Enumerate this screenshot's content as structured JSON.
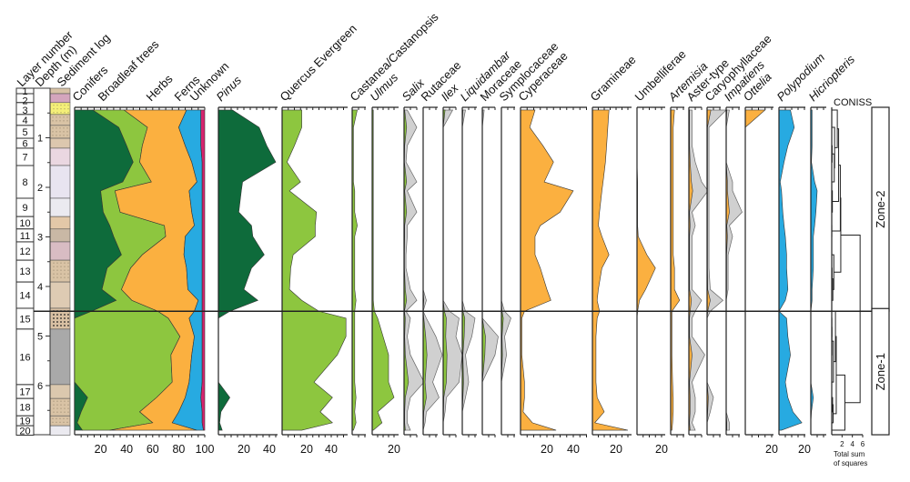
{
  "chart_data": {
    "type": "area",
    "depth_label": "Depth (m)",
    "layer_label": "Layer number",
    "sediment_label": "Sediment log",
    "coniss_label": "CONISS",
    "coniss_axis_ticks": [
      "2",
      "4",
      "6"
    ],
    "coniss_axis_label_1": "Total sum",
    "coniss_axis_label_2": "of squares",
    "depth_ticks": [
      1,
      2,
      3,
      4,
      5,
      6
    ],
    "depths": [
      0.44,
      0.79,
      1.16,
      1.49,
      1.89,
      2.07,
      2.5,
      2.77,
      2.99,
      3.36,
      3.63,
      4.06,
      4.28,
      4.5,
      4.64,
      5.01,
      5.38,
      5.93,
      6.24,
      6.53,
      6.75,
      6.9
    ],
    "layers": [
      {
        "n": "1",
        "top": 0.0,
        "bottom": 0.11,
        "color": "#d8c2a6"
      },
      {
        "n": "2",
        "top": 0.11,
        "bottom": 0.29,
        "color": "#d4a5bd"
      },
      {
        "n": "3",
        "top": 0.29,
        "bottom": 0.53,
        "color": "#f4ef78"
      },
      {
        "n": "4",
        "top": 0.53,
        "bottom": 0.75,
        "color": "#d9c3a5"
      },
      {
        "n": "5",
        "top": 0.75,
        "bottom": 1.01,
        "color": "#d9c3a5"
      },
      {
        "n": "6",
        "top": 1.01,
        "bottom": 1.21,
        "color": "#dcc7ae"
      },
      {
        "n": "7",
        "top": 1.21,
        "bottom": 1.56,
        "color": "#ead7e1"
      },
      {
        "n": "8",
        "top": 1.56,
        "bottom": 2.22,
        "color": "#e8e4f0"
      },
      {
        "n": "9",
        "top": 2.22,
        "bottom": 2.59,
        "color": "#ebeaf0"
      },
      {
        "n": "10",
        "top": 2.59,
        "bottom": 2.84,
        "color": "#e3c8a8"
      },
      {
        "n": "11",
        "top": 2.84,
        "bottom": 3.1,
        "color": "#c9b8a5"
      },
      {
        "n": "12",
        "top": 3.1,
        "bottom": 3.47,
        "color": "#d8bcc3"
      },
      {
        "n": "13",
        "top": 3.47,
        "bottom": 3.91,
        "color": "#d9c3a5"
      },
      {
        "n": "14",
        "top": 3.91,
        "bottom": 4.44,
        "color": "#decbb3"
      },
      {
        "n": "15",
        "top": 4.44,
        "bottom": 4.86,
        "color": "#d8c0a3"
      },
      {
        "n": "16",
        "top": 4.86,
        "bottom": 5.98,
        "color": "#a9a9a9"
      },
      {
        "n": "17",
        "top": 5.98,
        "bottom": 6.26,
        "color": "#dbc8ae"
      },
      {
        "n": "18",
        "top": 6.26,
        "bottom": 6.61,
        "color": "#d9c3a5"
      },
      {
        "n": "19",
        "top": 6.61,
        "bottom": 6.81,
        "color": "#d9c3a5"
      },
      {
        "n": "20",
        "top": 6.81,
        "bottom": 7.0,
        "color": "#ebeaf0"
      }
    ],
    "summary": {
      "ticks": [
        20,
        40,
        60,
        80,
        100
      ],
      "xlim": [
        0,
        100
      ],
      "series": [
        {
          "name": "Conifers",
          "color": "#0e6b3b",
          "values": [
            14,
            34,
            40,
            45,
            37,
            20,
            22,
            27,
            30,
            36,
            25,
            21,
            32,
            13,
            0,
            0,
            0,
            0,
            10,
            5,
            2,
            6
          ]
        },
        {
          "name": "Broadleaf trees",
          "color": "#8dc63f",
          "values": [
            24,
            22,
            12,
            5,
            22,
            11,
            13,
            42,
            40,
            16,
            18,
            15,
            12,
            51,
            72,
            81,
            74,
            75,
            53,
            45,
            58,
            21
          ]
        },
        {
          "name": "Herbs",
          "color": "#fbb040",
          "values": [
            48,
            24,
            33,
            40,
            35,
            57,
            55,
            23,
            15,
            32,
            43,
            51,
            51,
            28,
            16,
            11,
            16,
            13,
            22,
            30,
            15,
            67
          ]
        },
        {
          "name": "Ferns",
          "color": "#27aae1",
          "values": [
            11,
            17,
            12,
            8,
            4,
            10,
            8,
            6,
            13,
            14,
            12,
            11,
            3,
            6,
            10,
            6,
            8,
            10,
            12,
            18,
            23,
            5
          ]
        },
        {
          "name": "Unknown",
          "color": "#d6246e",
          "values": [
            3,
            3,
            3,
            2,
            2,
            2,
            2,
            2,
            2,
            2,
            2,
            2,
            2,
            2,
            2,
            2,
            2,
            2,
            3,
            2,
            2,
            1
          ]
        }
      ]
    },
    "taxa": [
      {
        "name": "Pinus",
        "italic": true,
        "color": "#0e6b3b",
        "ticks": [
          20,
          40
        ],
        "values": [
          11,
          32,
          38,
          45,
          19,
          18,
          16,
          26,
          27,
          36,
          26,
          20,
          31,
          9,
          0,
          0,
          0,
          0,
          9,
          2,
          1,
          3
        ]
      },
      {
        "name": "Quercus Evergreen",
        "italic": false,
        "color": "#8dc63f",
        "ticks": [
          20,
          40
        ],
        "values": [
          16,
          16,
          10,
          4,
          15,
          6,
          28,
          27,
          27,
          9,
          7,
          6,
          16,
          30,
          52,
          52,
          45,
          26,
          41,
          31,
          41,
          16
        ]
      },
      {
        "name": "Castanea/Castanopsis",
        "italic": false,
        "color": "#8dc63f",
        "ticks": [],
        "values": [
          4,
          1,
          1,
          1,
          1,
          2,
          2,
          4,
          2,
          2,
          2,
          2,
          3,
          2,
          2,
          2,
          2,
          2,
          3,
          2,
          3,
          1
        ]
      },
      {
        "name": "Ulmus",
        "italic": true,
        "color": "#8dc63f",
        "ticks": [
          20
        ],
        "values": [
          1,
          1,
          1,
          1,
          1,
          1,
          1,
          1,
          1,
          1,
          1,
          1,
          1,
          2,
          5,
          10,
          15,
          15,
          20,
          5,
          9,
          1
        ]
      },
      {
        "name": "Salix",
        "italic": true,
        "color": "#8dc63f",
        "exaggeration": 5,
        "ticks": [],
        "values": [
          0.5,
          2,
          0.5,
          0.3,
          2,
          0.5,
          2,
          0.5,
          0.5,
          0.3,
          0.3,
          1,
          2,
          0.3,
          1,
          0.5,
          1,
          3.5,
          1,
          0.5,
          0.5,
          1
        ]
      },
      {
        "name": "Rutaceae",
        "italic": false,
        "color": "#8dc63f",
        "exaggeration": 5,
        "ticks": [],
        "values": [
          0,
          0,
          0,
          0,
          0,
          0,
          0,
          0,
          0,
          0,
          0,
          0,
          0.5,
          0,
          0.5,
          2,
          3,
          1.5,
          2.5,
          0.5,
          0.3,
          0
        ]
      },
      {
        "name": "Ilex",
        "italic": true,
        "color": "#8dc63f",
        "exaggeration": 5,
        "ticks": [],
        "values": [
          1.5,
          0,
          0,
          0,
          0,
          0,
          0,
          0,
          0,
          0,
          0,
          0,
          0,
          1,
          2.5,
          2,
          3,
          2.5,
          0.5,
          0.3,
          0,
          0
        ]
      },
      {
        "name": "Liquidambar",
        "italic": true,
        "color": "#8dc63f",
        "exaggeration": 5,
        "ticks": [],
        "values": [
          0.5,
          0,
          0,
          0,
          0,
          0,
          0,
          0,
          0,
          0,
          0,
          0,
          0,
          0.5,
          2,
          1.5,
          0.5,
          1,
          0.5,
          0,
          0,
          0
        ]
      },
      {
        "name": "Moraceae",
        "italic": false,
        "color": "#8dc63f",
        "exaggeration": 5,
        "ticks": [],
        "values": [
          0.3,
          0,
          0,
          0,
          0,
          0,
          0,
          0,
          0,
          0,
          0,
          0,
          0,
          0,
          0,
          2.5,
          2,
          0,
          0,
          0,
          0,
          0
        ]
      },
      {
        "name": "Symplocaceae",
        "italic": false,
        "color": "#8dc63f",
        "exaggeration": 5,
        "ticks": [],
        "values": [
          0,
          0,
          0,
          0,
          0,
          0,
          0,
          0,
          0,
          0,
          0,
          0,
          0,
          0.5,
          1.5,
          0.5,
          0.8,
          0,
          0,
          0,
          0,
          0
        ]
      },
      {
        "name": "Cyperaceae",
        "italic": false,
        "color": "#fbb040",
        "ticks": [
          20,
          40
        ],
        "values": [
          11,
          7,
          17,
          25,
          18,
          40,
          30,
          15,
          11,
          11,
          15,
          20,
          23,
          3,
          1,
          1,
          1,
          3,
          3,
          2,
          9,
          27
        ]
      },
      {
        "name": "Gramineae",
        "italic": false,
        "color": "#fbb040",
        "ticks": [
          20
        ],
        "values": [
          14,
          13,
          12,
          11,
          9,
          8,
          6,
          5,
          8,
          14,
          8,
          5,
          4,
          6,
          4,
          3,
          3,
          3,
          4,
          10,
          2,
          30
        ]
      },
      {
        "name": "Umbelliferae",
        "italic": false,
        "color": "#fbb040",
        "ticks": [
          20
        ],
        "values": [
          0,
          0,
          0,
          0,
          0.5,
          0.5,
          0.5,
          0.5,
          1,
          8,
          15,
          7,
          2,
          0.5,
          0,
          0,
          0,
          0,
          0,
          0,
          0,
          0
        ]
      },
      {
        "name": "Artemisia",
        "italic": true,
        "color": "#fbb040",
        "ticks": [],
        "values": [
          3,
          2,
          2,
          2,
          2,
          2,
          2,
          2,
          2,
          2,
          3,
          3,
          7,
          1,
          1,
          1,
          1,
          1.5,
          2,
          2,
          1.5,
          1
        ]
      },
      {
        "name": "Aster-type",
        "italic": false,
        "color": "#fbb040",
        "exaggeration": 5,
        "ticks": [],
        "values": [
          0.5,
          0.5,
          0.5,
          1,
          2,
          3,
          0.5,
          1,
          0.5,
          0.5,
          0.5,
          0.5,
          2,
          1,
          0.5,
          0.5,
          2.5,
          0.5,
          1,
          1,
          0.5,
          1
        ]
      },
      {
        "name": "Caryophyllaceae",
        "italic": false,
        "color": "#fbb040",
        "exaggeration": 5,
        "ticks": [],
        "values": [
          3,
          0.3,
          0.3,
          0.3,
          0.3,
          0.3,
          0.3,
          0.3,
          0.3,
          0.3,
          0.3,
          0.5,
          2.5,
          0.5,
          0,
          0,
          0,
          0,
          1,
          0.5,
          0,
          0
        ]
      },
      {
        "name": "Impatiens",
        "italic": true,
        "color": "#fbb040",
        "exaggeration": 5,
        "ticks": [],
        "values": [
          0.5,
          0,
          0,
          0,
          1,
          1,
          2.5,
          0.5,
          1,
          0.3,
          0.3,
          0.3,
          0,
          0,
          0,
          0,
          0,
          0,
          0,
          0,
          0.5,
          0.5
        ]
      },
      {
        "name": "Ottelia",
        "italic": true,
        "color": "#fbb040",
        "ticks": [
          20
        ],
        "values": [
          15,
          0,
          0,
          0,
          0,
          0,
          0,
          0,
          0,
          0,
          0,
          0,
          0,
          0,
          0,
          0,
          0,
          0,
          0,
          0,
          0,
          0
        ]
      },
      {
        "name": "Polypodium",
        "italic": true,
        "color": "#27aae1",
        "ticks": [
          20
        ],
        "values": [
          9,
          12,
          7,
          4,
          1,
          2,
          3,
          4,
          5,
          6,
          6,
          7,
          5,
          0,
          6,
          7,
          9,
          5,
          7,
          11,
          18,
          2
        ]
      },
      {
        "name": "Hicriopteris",
        "italic": true,
        "color": "#27aae1",
        "ticks": [],
        "values": [
          1,
          1,
          1,
          0.5,
          3,
          5,
          4,
          3,
          2,
          2,
          2,
          1,
          1,
          0,
          0,
          0,
          0,
          0,
          2,
          0.5,
          0,
          0
        ]
      }
    ],
    "zones": [
      {
        "name": "Zone-2",
        "top": 0.44,
        "bottom": 4.5
      },
      {
        "name": "Zone-1",
        "top": 4.5,
        "bottom": 6.9
      }
    ],
    "zone_boundary_depth": 4.5,
    "exaggeration_color": "#d0d0d0"
  }
}
